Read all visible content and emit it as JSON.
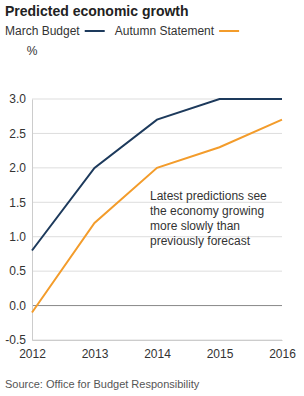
{
  "chart_data": {
    "type": "line",
    "title": "Predicted economic growth",
    "ylabel": "%",
    "annotation": [
      "Latest predictions see",
      "the economy growing",
      "more slowly than",
      "previously forecast"
    ],
    "source": "Source: Office for Budget Responsibility",
    "x": [
      2012,
      2013,
      2014,
      2015,
      2016
    ],
    "xlim": [
      2012,
      2016
    ],
    "xticks": [
      2012,
      2013,
      2014,
      2015,
      2016
    ],
    "ylim": [
      -0.5,
      3.0
    ],
    "yticks": [
      -0.5,
      {
        "value": 0,
        "label": "0.0"
      },
      0.5,
      {
        "value": 1,
        "label": "1.0"
      },
      1.5,
      {
        "value": 2,
        "label": "2.0"
      },
      2.5,
      {
        "value": 3,
        "label": "3.0"
      }
    ],
    "grid": true,
    "legend": "top-left",
    "series": [
      {
        "name": "March Budget",
        "color": "#1d3a5c",
        "values": [
          0.8,
          2.0,
          2.7,
          3.0,
          3.0
        ]
      },
      {
        "name": "Autumn Statement",
        "color": "#f39c2b",
        "values": [
          -0.1,
          1.2,
          2.0,
          2.3,
          2.7
        ]
      }
    ]
  }
}
